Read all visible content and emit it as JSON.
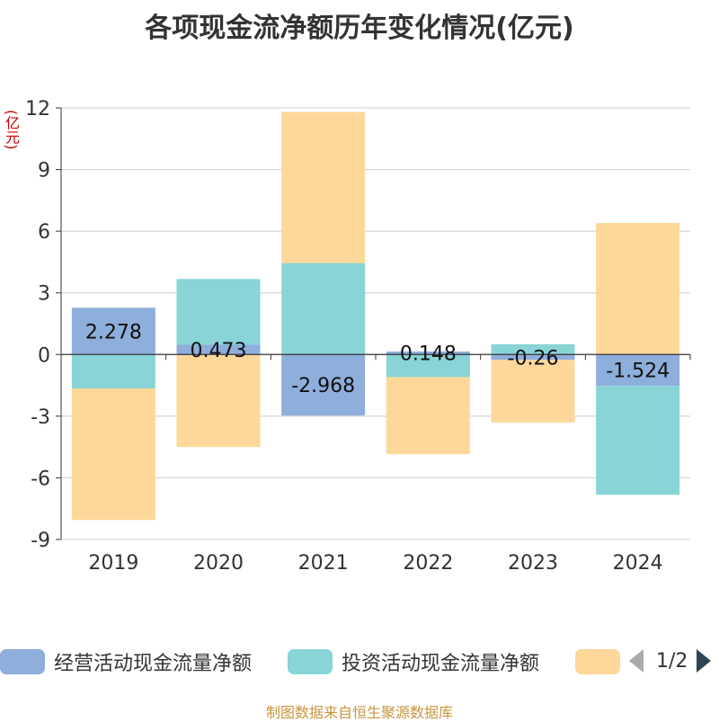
{
  "title": "各项现金流净额历年变化情况(亿元)",
  "y_unit": "(亿元)",
  "source": "制图数据来自恒生聚源数据库",
  "legend": {
    "items": [
      {
        "label": "经营活动现金流量净额",
        "color": "#8eaedb"
      },
      {
        "label": "投资活动现金流量净额",
        "color": "#88d4d6"
      },
      {
        "label": "",
        "color": "#fdd89a"
      }
    ],
    "page": "1/2"
  },
  "chart_data": {
    "type": "bar",
    "stacked": true,
    "categories": [
      "2019",
      "2020",
      "2021",
      "2022",
      "2023",
      "2024"
    ],
    "ylim": [
      -9,
      12
    ],
    "yticks": [
      12,
      9,
      6,
      3,
      0,
      -3,
      -6,
      -9
    ],
    "grid": true,
    "series": [
      {
        "name": "经营活动现金流量净额",
        "color": "#8eaedb",
        "values": [
          2.278,
          0.473,
          -2.968,
          0.148,
          -0.26,
          -1.524
        ],
        "labels": [
          "2.278",
          "0.473",
          "-2.968",
          "0.148",
          "-0.26",
          "-1.524"
        ]
      },
      {
        "name": "投资活动现金流量净额",
        "color": "#88d4d6",
        "values": [
          -1.65,
          3.2,
          4.45,
          -1.1,
          0.5,
          -5.3
        ]
      },
      {
        "name": "",
        "color": "#fdd89a",
        "values": [
          -6.4,
          -4.5,
          7.35,
          -3.75,
          -3.05,
          6.4
        ]
      }
    ]
  }
}
